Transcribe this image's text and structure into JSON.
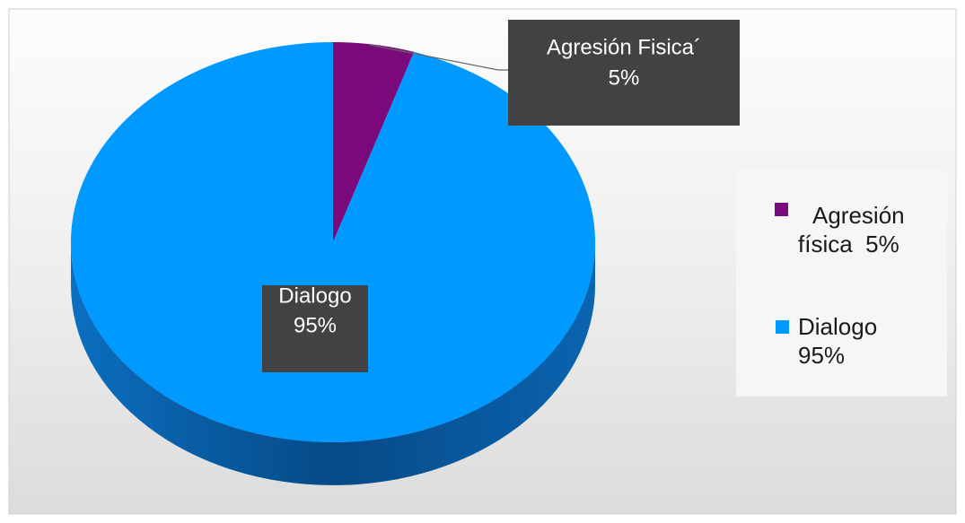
{
  "chart_data": {
    "type": "pie",
    "categories": [
      "Agresión Fisica´",
      "Dialogo"
    ],
    "values": [
      5,
      95
    ],
    "value_labels": [
      "5%",
      "95%"
    ],
    "colors": [
      "#7a0a7c",
      "#0099ff"
    ],
    "legend": [
      "Agresión física  5%",
      "Dialogo 95%"
    ]
  }
}
